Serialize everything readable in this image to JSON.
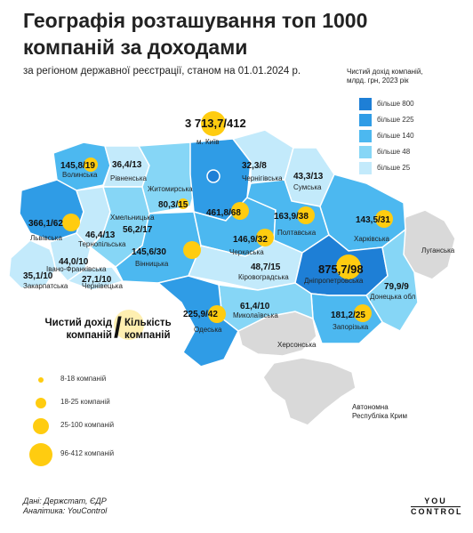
{
  "header": {
    "title_line1": "Географія розташування топ 1000",
    "title_line2": "компаній за доходами",
    "subtitle": "за регіоном державної реєстрації, станом на 01.01.2024 р."
  },
  "legend": {
    "title_line1": "Чистий дохід компаній,",
    "title_line2": "млрд. грн, 2023 рік",
    "items": [
      {
        "label": "більше 800",
        "color": "#1e7fd6"
      },
      {
        "label": "більше 225",
        "color": "#2f9ce6"
      },
      {
        "label": "більше 140",
        "color": "#4cb8f0"
      },
      {
        "label": "більше 48",
        "color": "#86d6f6"
      },
      {
        "label": "більше 25",
        "color": "#c3eafb"
      }
    ]
  },
  "metric_key": {
    "revenue_line1": "Чистий дохід",
    "revenue_line2": "компаній",
    "slash": "/",
    "count_line1": "Кількість",
    "count_line2": "компаній"
  },
  "size_legend": [
    {
      "label": "8-18 компаній",
      "min_count": 8
    },
    {
      "label": "18-25 компаній",
      "min_count": 18
    },
    {
      "label": "25-100 компаній",
      "min_count": 25
    },
    {
      "label": "96-412 компаній",
      "min_count": 96
    }
  ],
  "regions": [
    {
      "name": "м. Київ",
      "value": "3 713,7",
      "count": "412",
      "count_num": 412
    },
    {
      "name": "Волинська",
      "value": "145,8",
      "count": "19",
      "count_num": 19
    },
    {
      "name": "Рівненська",
      "value": "36,4",
      "count": "13",
      "count_num": 13
    },
    {
      "name": "Житомирська",
      "value": "",
      "count": "",
      "count_num": 0
    },
    {
      "name": "Чернігівська",
      "value": "32,3",
      "count": "8",
      "count_num": 8
    },
    {
      "name": "Сумська",
      "value": "43,3",
      "count": "13",
      "count_num": 13
    },
    {
      "name": "Львівська",
      "value": "366,1",
      "count": "62",
      "count_num": 62
    },
    {
      "name": "Хмельницька",
      "value": "56,2",
      "count": "17",
      "count_num": 17
    },
    {
      "name": "Тернопільська",
      "value": "46,4",
      "count": "13",
      "count_num": 13
    },
    {
      "name": "Київська",
      "value": "461,8",
      "count": "68",
      "count_num": 68
    },
    {
      "name": "Житомирська (значення)",
      "value": "80,3",
      "count": "15",
      "count_num": 15
    },
    {
      "name": "Полтавська",
      "value": "163,9",
      "count": "38",
      "count_num": 38
    },
    {
      "name": "Харківська",
      "value": "143,5",
      "count": "31",
      "count_num": 31
    },
    {
      "name": "Вінницька",
      "value": "145,6",
      "count": "30",
      "count_num": 30
    },
    {
      "name": "Черкаська",
      "value": "146,9",
      "count": "32",
      "count_num": 32
    },
    {
      "name": "Івано-Франківська",
      "value": "44,0",
      "count": "10",
      "count_num": 10
    },
    {
      "name": "Закарпатська",
      "value": "35,1",
      "count": "10",
      "count_num": 10
    },
    {
      "name": "Чернівецька",
      "value": "27,1",
      "count": "10",
      "count_num": 10
    },
    {
      "name": "Кіровоградська",
      "value": "48,7",
      "count": "15",
      "count_num": 15
    },
    {
      "name": "Дніпропетровська",
      "value": "875,7",
      "count": "98",
      "count_num": 98
    },
    {
      "name": "Донецька обл",
      "value": "79,9",
      "count": "9",
      "count_num": 9
    },
    {
      "name": "Миколаївська",
      "value": "61,4",
      "count": "10",
      "count_num": 10
    },
    {
      "name": "Одеська",
      "value": "225,9",
      "count": "42",
      "count_num": 42
    },
    {
      "name": "Запорізька",
      "value": "181,2",
      "count": "25",
      "count_num": 25
    },
    {
      "name": "Луганська",
      "value": "",
      "count": "",
      "count_num": 0
    },
    {
      "name": "Херсонська",
      "value": "",
      "count": "",
      "count_num": 0
    },
    {
      "name": "Автономна Республіка Крим",
      "value": "",
      "count": "",
      "count_num": 0
    }
  ],
  "source": {
    "line1": "Дані: Держстат, ЄДР",
    "line2": "Аналітика: YouControl"
  },
  "logo": {
    "line1": "YOU",
    "line2": "CONTROL"
  }
}
